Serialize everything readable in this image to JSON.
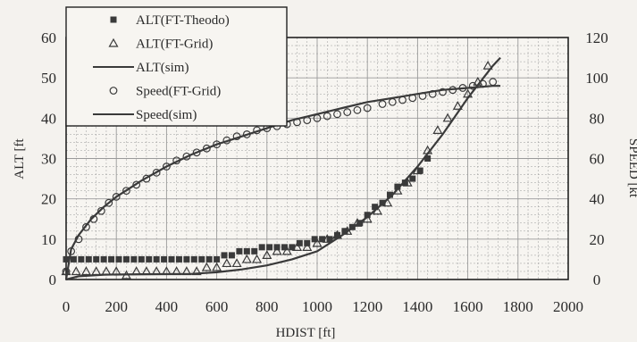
{
  "chart_data": {
    "type": "scatter",
    "xlabel": "HDIST [ft]",
    "ylabel": "ALT [ft",
    "y2label": "SPEED [kt",
    "xlim": [
      0,
      2000
    ],
    "ylim": [
      0,
      60
    ],
    "y2lim": [
      0,
      120
    ],
    "xticks": [
      "0",
      "200",
      "400",
      "600",
      "800",
      "1000",
      "1200",
      "1400",
      "1600",
      "1800",
      "2000"
    ],
    "yticks": [
      "0",
      "10",
      "20",
      "30",
      "40",
      "50",
      "60"
    ],
    "y2ticks": [
      "0",
      "20",
      "40",
      "60",
      "80",
      "100",
      "120"
    ],
    "grid": true,
    "legend_position": "top-left",
    "colors": {
      "data": "#3a3a3a",
      "grid": "#9a9a9a",
      "background": "#f4f2ee"
    },
    "series": [
      {
        "name": "ALT(FT-Theodo)",
        "axis": "left",
        "marker": "square",
        "points": [
          [
            0,
            5
          ],
          [
            30,
            5
          ],
          [
            60,
            5
          ],
          [
            90,
            5
          ],
          [
            120,
            5
          ],
          [
            150,
            5
          ],
          [
            180,
            5
          ],
          [
            210,
            5
          ],
          [
            240,
            5
          ],
          [
            270,
            5
          ],
          [
            300,
            5
          ],
          [
            330,
            5
          ],
          [
            360,
            5
          ],
          [
            390,
            5
          ],
          [
            420,
            5
          ],
          [
            450,
            5
          ],
          [
            480,
            5
          ],
          [
            510,
            5
          ],
          [
            540,
            5
          ],
          [
            570,
            5
          ],
          [
            600,
            5
          ],
          [
            630,
            6
          ],
          [
            660,
            6
          ],
          [
            690,
            7
          ],
          [
            720,
            7
          ],
          [
            750,
            7
          ],
          [
            780,
            8
          ],
          [
            810,
            8
          ],
          [
            840,
            8
          ],
          [
            870,
            8
          ],
          [
            900,
            8
          ],
          [
            930,
            9
          ],
          [
            960,
            9
          ],
          [
            990,
            10
          ],
          [
            1020,
            10
          ],
          [
            1050,
            10
          ],
          [
            1080,
            11
          ],
          [
            1110,
            12
          ],
          [
            1140,
            13
          ],
          [
            1170,
            14
          ],
          [
            1200,
            16
          ],
          [
            1230,
            18
          ],
          [
            1260,
            19
          ],
          [
            1290,
            21
          ],
          [
            1320,
            23
          ],
          [
            1350,
            24
          ],
          [
            1380,
            25
          ],
          [
            1410,
            27
          ],
          [
            1440,
            30
          ]
        ]
      },
      {
        "name": "ALT(FT-Grid)",
        "axis": "left",
        "marker": "triangle",
        "points": [
          [
            0,
            2
          ],
          [
            40,
            2
          ],
          [
            80,
            2
          ],
          [
            120,
            2
          ],
          [
            160,
            2
          ],
          [
            200,
            2
          ],
          [
            240,
            1
          ],
          [
            280,
            2
          ],
          [
            320,
            2
          ],
          [
            360,
            2
          ],
          [
            400,
            2
          ],
          [
            440,
            2
          ],
          [
            480,
            2
          ],
          [
            520,
            2
          ],
          [
            560,
            3
          ],
          [
            600,
            3
          ],
          [
            640,
            4
          ],
          [
            680,
            4
          ],
          [
            720,
            5
          ],
          [
            760,
            5
          ],
          [
            800,
            6
          ],
          [
            840,
            7
          ],
          [
            880,
            7
          ],
          [
            920,
            8
          ],
          [
            960,
            8
          ],
          [
            1000,
            9
          ],
          [
            1040,
            10
          ],
          [
            1080,
            11
          ],
          [
            1120,
            12
          ],
          [
            1160,
            14
          ],
          [
            1200,
            15
          ],
          [
            1240,
            17
          ],
          [
            1280,
            19
          ],
          [
            1320,
            22
          ],
          [
            1360,
            24
          ],
          [
            1400,
            27
          ],
          [
            1440,
            32
          ],
          [
            1480,
            37
          ],
          [
            1520,
            40
          ],
          [
            1560,
            43
          ],
          [
            1600,
            46
          ],
          [
            1640,
            49
          ],
          [
            1680,
            53
          ]
        ]
      },
      {
        "name": "ALT(sim)",
        "axis": "left",
        "marker": "line",
        "points": [
          [
            0,
            0
          ],
          [
            50,
            0.8
          ],
          [
            150,
            1.2
          ],
          [
            300,
            1.3
          ],
          [
            500,
            1.4
          ],
          [
            600,
            1.8
          ],
          [
            700,
            2.5
          ],
          [
            800,
            3.5
          ],
          [
            900,
            5
          ],
          [
            1000,
            7
          ],
          [
            1100,
            11
          ],
          [
            1200,
            15.5
          ],
          [
            1300,
            21
          ],
          [
            1400,
            28
          ],
          [
            1500,
            36
          ],
          [
            1600,
            45
          ],
          [
            1650,
            49
          ],
          [
            1700,
            53
          ],
          [
            1730,
            55
          ]
        ]
      },
      {
        "name": "Speed(FT-Grid)",
        "axis": "right",
        "marker": "circle",
        "points": [
          [
            0,
            4
          ],
          [
            20,
            14
          ],
          [
            50,
            20
          ],
          [
            80,
            26
          ],
          [
            110,
            30
          ],
          [
            140,
            34
          ],
          [
            170,
            38
          ],
          [
            200,
            41
          ],
          [
            240,
            44
          ],
          [
            280,
            47
          ],
          [
            320,
            50
          ],
          [
            360,
            53
          ],
          [
            400,
            56
          ],
          [
            440,
            59
          ],
          [
            480,
            61
          ],
          [
            520,
            63
          ],
          [
            560,
            65
          ],
          [
            600,
            67
          ],
          [
            640,
            69
          ],
          [
            680,
            71
          ],
          [
            720,
            72
          ],
          [
            760,
            74
          ],
          [
            800,
            75
          ],
          [
            840,
            76
          ],
          [
            880,
            77
          ],
          [
            920,
            78
          ],
          [
            960,
            79
          ],
          [
            1000,
            80
          ],
          [
            1040,
            81
          ],
          [
            1080,
            82
          ],
          [
            1120,
            83
          ],
          [
            1160,
            84
          ],
          [
            1200,
            85
          ],
          [
            1260,
            87
          ],
          [
            1300,
            88
          ],
          [
            1340,
            89
          ],
          [
            1380,
            90
          ],
          [
            1420,
            91
          ],
          [
            1460,
            92
          ],
          [
            1500,
            93
          ],
          [
            1540,
            94
          ],
          [
            1580,
            95
          ],
          [
            1620,
            96
          ],
          [
            1660,
            97
          ],
          [
            1700,
            98
          ]
        ]
      },
      {
        "name": "Speed(sim)",
        "axis": "right",
        "marker": "line",
        "points": [
          [
            0,
            0
          ],
          [
            20,
            15
          ],
          [
            50,
            22
          ],
          [
            100,
            30
          ],
          [
            150,
            36
          ],
          [
            200,
            41
          ],
          [
            300,
            49
          ],
          [
            400,
            56
          ],
          [
            500,
            62
          ],
          [
            600,
            67
          ],
          [
            700,
            71
          ],
          [
            800,
            75
          ],
          [
            900,
            79
          ],
          [
            1000,
            82
          ],
          [
            1100,
            85
          ],
          [
            1200,
            88
          ],
          [
            1300,
            90
          ],
          [
            1400,
            92
          ],
          [
            1500,
            94
          ],
          [
            1600,
            95
          ],
          [
            1700,
            96
          ],
          [
            1730,
            96
          ]
        ]
      }
    ]
  }
}
